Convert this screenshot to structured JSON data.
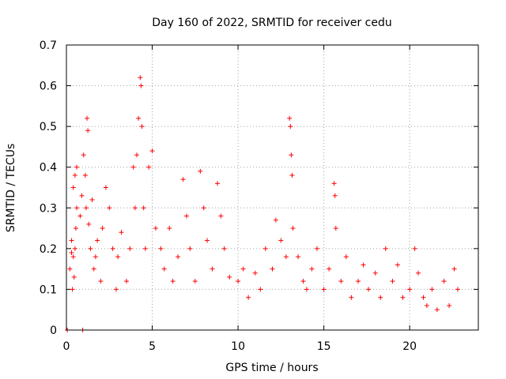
{
  "chart_data": {
    "type": "scatter",
    "title": "Day 160 of 2022, SRMTID for receiver cedu",
    "xlabel": "GPS time / hours",
    "ylabel": "SRMTID / TECUs",
    "xlim": [
      0,
      24
    ],
    "ylim": [
      0,
      0.7
    ],
    "xticks": [
      0,
      5,
      10,
      15,
      20
    ],
    "xtick_labels": [
      "0",
      "5",
      "10",
      "15",
      "20"
    ],
    "yticks": [
      0,
      0.1,
      0.2,
      0.3,
      0.4,
      0.5,
      0.6,
      0.7
    ],
    "ytick_labels": [
      "0",
      "0.1",
      "0.2",
      "0.3",
      "0.4",
      "0.5",
      "0.6",
      "0.7"
    ],
    "grid": true,
    "marker": "+",
    "color": "#ff0000",
    "series": [
      {
        "name": "SRMTID",
        "points": [
          [
            0.05,
            0.0
          ],
          [
            0.95,
            0.0
          ],
          [
            0.2,
            0.15
          ],
          [
            0.3,
            0.19
          ],
          [
            0.4,
            0.18
          ],
          [
            0.5,
            0.2
          ],
          [
            0.35,
            0.1
          ],
          [
            0.45,
            0.13
          ],
          [
            0.55,
            0.25
          ],
          [
            0.6,
            0.3
          ],
          [
            0.4,
            0.35
          ],
          [
            0.5,
            0.38
          ],
          [
            0.6,
            0.4
          ],
          [
            0.3,
            0.22
          ],
          [
            0.8,
            0.28
          ],
          [
            0.9,
            0.33
          ],
          [
            1.0,
            0.43
          ],
          [
            1.1,
            0.38
          ],
          [
            1.2,
            0.52
          ],
          [
            1.25,
            0.49
          ],
          [
            1.15,
            0.3
          ],
          [
            1.3,
            0.26
          ],
          [
            1.4,
            0.2
          ],
          [
            1.5,
            0.32
          ],
          [
            1.6,
            0.15
          ],
          [
            1.7,
            0.18
          ],
          [
            1.8,
            0.22
          ],
          [
            2.0,
            0.12
          ],
          [
            2.1,
            0.25
          ],
          [
            2.3,
            0.35
          ],
          [
            2.5,
            0.3
          ],
          [
            2.7,
            0.2
          ],
          [
            2.9,
            0.1
          ],
          [
            3.0,
            0.18
          ],
          [
            3.2,
            0.24
          ],
          [
            3.5,
            0.12
          ],
          [
            3.7,
            0.2
          ],
          [
            3.9,
            0.4
          ],
          [
            4.0,
            0.3
          ],
          [
            4.1,
            0.43
          ],
          [
            4.2,
            0.52
          ],
          [
            4.3,
            0.62
          ],
          [
            4.35,
            0.6
          ],
          [
            4.4,
            0.5
          ],
          [
            4.5,
            0.3
          ],
          [
            4.6,
            0.2
          ],
          [
            4.8,
            0.4
          ],
          [
            5.0,
            0.44
          ],
          [
            5.2,
            0.25
          ],
          [
            5.5,
            0.2
          ],
          [
            5.7,
            0.15
          ],
          [
            6.0,
            0.25
          ],
          [
            6.2,
            0.12
          ],
          [
            6.5,
            0.18
          ],
          [
            6.8,
            0.37
          ],
          [
            7.0,
            0.28
          ],
          [
            7.2,
            0.2
          ],
          [
            7.5,
            0.12
          ],
          [
            7.8,
            0.39
          ],
          [
            8.0,
            0.3
          ],
          [
            8.2,
            0.22
          ],
          [
            8.5,
            0.15
          ],
          [
            8.8,
            0.36
          ],
          [
            9.0,
            0.28
          ],
          [
            9.2,
            0.2
          ],
          [
            9.5,
            0.13
          ],
          [
            10.0,
            0.12
          ],
          [
            10.3,
            0.15
          ],
          [
            10.6,
            0.08
          ],
          [
            11.0,
            0.14
          ],
          [
            11.3,
            0.1
          ],
          [
            11.6,
            0.2
          ],
          [
            12.0,
            0.15
          ],
          [
            12.2,
            0.27
          ],
          [
            12.5,
            0.22
          ],
          [
            12.8,
            0.18
          ],
          [
            13.0,
            0.52
          ],
          [
            13.05,
            0.5
          ],
          [
            13.1,
            0.43
          ],
          [
            13.15,
            0.38
          ],
          [
            13.2,
            0.25
          ],
          [
            13.5,
            0.18
          ],
          [
            13.8,
            0.12
          ],
          [
            14.0,
            0.1
          ],
          [
            14.3,
            0.15
          ],
          [
            14.6,
            0.2
          ],
          [
            15.0,
            0.1
          ],
          [
            15.3,
            0.15
          ],
          [
            15.6,
            0.36
          ],
          [
            15.65,
            0.33
          ],
          [
            15.7,
            0.25
          ],
          [
            16.0,
            0.12
          ],
          [
            16.3,
            0.18
          ],
          [
            16.6,
            0.08
          ],
          [
            17.0,
            0.12
          ],
          [
            17.3,
            0.16
          ],
          [
            17.6,
            0.1
          ],
          [
            18.0,
            0.14
          ],
          [
            18.3,
            0.08
          ],
          [
            18.6,
            0.2
          ],
          [
            19.0,
            0.12
          ],
          [
            19.3,
            0.16
          ],
          [
            19.6,
            0.08
          ],
          [
            20.0,
            0.1
          ],
          [
            20.3,
            0.2
          ],
          [
            20.5,
            0.14
          ],
          [
            20.8,
            0.08
          ],
          [
            21.0,
            0.06
          ],
          [
            21.3,
            0.1
          ],
          [
            21.6,
            0.05
          ],
          [
            22.0,
            0.12
          ],
          [
            22.3,
            0.06
          ],
          [
            22.6,
            0.15
          ],
          [
            22.8,
            0.1
          ]
        ]
      }
    ]
  }
}
